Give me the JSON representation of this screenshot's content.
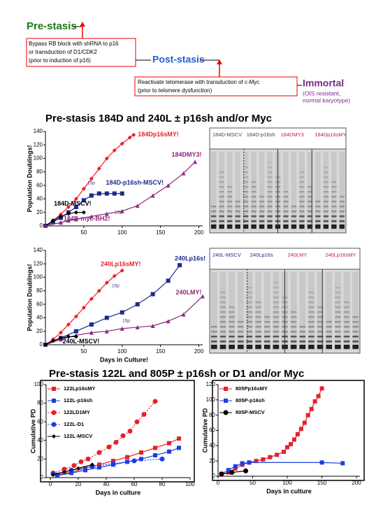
{
  "diagram": {
    "stage1": "Pre-stasis",
    "box1": [
      "Bypass RB block with shRNA to p16",
      "or transduction of D1/CDK2",
      "(prior to induction of p16)"
    ],
    "stage2": "Post-stasis",
    "box2": [
      "Reactivate telomerase with transduction of c-Myc",
      "(prior to telomere dysfunction)"
    ],
    "stage3": "Immortal",
    "stage3_note": [
      "(OIS resistant,",
      "normal karyotype)"
    ]
  },
  "headings": [
    "Pre-stasis 184D and 240L ± p16sh and/or Myc",
    "Pre-stasis 122L and 805P ± p16sh or D1 and/or Myc"
  ],
  "gels": [
    {
      "groups": [
        "184D-MSCV",
        "184D-p16sh",
        "184DMY3",
        "184Dp16sMY"
      ]
    },
    {
      "groups": [
        "240L-MSCV",
        "240Lp16s",
        "240LMY",
        "240Lp16sMY"
      ]
    }
  ],
  "chart_data": [
    {
      "type": "line",
      "ylabel": "Population Doublings!",
      "xlim": [
        0,
        205
      ],
      "ylim": [
        0,
        140
      ],
      "xticks": [
        50,
        100,
        150,
        200
      ],
      "yticks": [
        0,
        20,
        40,
        60,
        80,
        100,
        120,
        140
      ],
      "legend": "direct",
      "annotations": [
        "15p",
        "15p"
      ],
      "series": [
        {
          "name": "184Dp16sMY!",
          "color": "#e8202a",
          "marker": "diamond",
          "x": [
            0,
            10,
            20,
            30,
            40,
            50,
            60,
            70,
            80,
            90,
            100,
            110,
            115
          ],
          "values": [
            0,
            8,
            17,
            28,
            40,
            55,
            70,
            85,
            100,
            112,
            122,
            131,
            135
          ]
        },
        {
          "name": "184DMY3!",
          "color": "#8b2a7e",
          "marker": "triangle",
          "x": [
            0,
            20,
            40,
            60,
            80,
            100,
            120,
            140,
            160,
            180,
            195
          ],
          "values": [
            0,
            5,
            10,
            14,
            18,
            22,
            30,
            45,
            60,
            78,
            95
          ]
        },
        {
          "name": "184D-p16sh-MSCV!",
          "color": "#1f2a8c",
          "marker": "square",
          "x": [
            0,
            10,
            20,
            30,
            40,
            50,
            60,
            70,
            80,
            90,
            100
          ],
          "values": [
            0,
            6,
            12,
            20,
            28,
            38,
            45,
            48,
            48,
            48,
            48
          ]
        },
        {
          "name": "184D-MSCV!",
          "color": "#000000",
          "marker": "diamond",
          "x": [
            0,
            10,
            20,
            30,
            40,
            50
          ],
          "values": [
            0,
            8,
            14,
            18,
            20,
            20
          ]
        },
        {
          "name": "184D-myc-BH2!",
          "color": "#8b2a7e",
          "marker": "triangle",
          "x": [
            0,
            20,
            30,
            40
          ],
          "values": [
            0,
            5,
            8,
            10
          ]
        }
      ]
    },
    {
      "type": "line",
      "ylabel": "Population Doublings!",
      "xlabel": "Days in Culture!",
      "xlim": [
        0,
        205
      ],
      "ylim": [
        0,
        140
      ],
      "xticks": [
        50,
        100,
        150,
        200
      ],
      "yticks": [
        0,
        20,
        40,
        60,
        80,
        100,
        120,
        140
      ],
      "legend": "direct",
      "annotations": [
        "15p",
        "15p"
      ],
      "series": [
        {
          "name": "240Lp16sMY!",
          "color": "#e8202a",
          "marker": "diamond",
          "x": [
            0,
            10,
            20,
            30,
            40,
            50,
            60,
            70,
            80,
            90,
            100
          ],
          "values": [
            0,
            8,
            18,
            30,
            42,
            55,
            68,
            80,
            92,
            102,
            110
          ]
        },
        {
          "name": "240Lp16s!",
          "color": "#1f2a8c",
          "marker": "square",
          "x": [
            0,
            20,
            40,
            60,
            80,
            100,
            120,
            140,
            160,
            175
          ],
          "values": [
            0,
            10,
            20,
            30,
            40,
            48,
            60,
            75,
            95,
            118
          ]
        },
        {
          "name": "240LMY!",
          "color": "#8b2a7e",
          "marker": "triangle",
          "x": [
            0,
            20,
            40,
            60,
            80,
            100,
            120,
            140,
            160,
            180,
            205
          ],
          "values": [
            0,
            8,
            14,
            18,
            20,
            24,
            26,
            28,
            35,
            45,
            72
          ]
        },
        {
          "name": "240L-MSCV!",
          "color": "#000000",
          "marker": "diamond",
          "x": [
            0,
            10,
            20,
            30,
            40
          ],
          "values": [
            0,
            6,
            10,
            12,
            12
          ]
        }
      ]
    },
    {
      "type": "line",
      "ylabel": "Cumulative PD",
      "xlabel": "Days in culture",
      "xlim": [
        -3,
        100
      ],
      "ylim": [
        0,
        100
      ],
      "xticks": [
        0,
        20,
        40,
        60,
        80,
        100
      ],
      "yticks": [
        0,
        20,
        40,
        60,
        80,
        100
      ],
      "legend": "top-left",
      "series": [
        {
          "name": "122Lp16sMY",
          "color": "#e8202a",
          "marker": "square",
          "x": [
            5,
            15,
            25,
            35,
            45,
            55,
            65,
            75,
            85,
            92
          ],
          "values": [
            3,
            6,
            10,
            14,
            18,
            22,
            27,
            32,
            37,
            42
          ]
        },
        {
          "name": "122L-p16sh",
          "color": "#1a3fe0",
          "marker": "square",
          "x": [
            5,
            15,
            25,
            35,
            45,
            55,
            65,
            75,
            85,
            92
          ],
          "values": [
            2,
            5,
            8,
            11,
            14,
            17,
            20,
            24,
            28,
            32
          ]
        },
        {
          "name": "122LD1MY",
          "color": "#e8202a",
          "marker": "circle",
          "dash": true,
          "x": [
            2,
            10,
            17,
            22,
            27,
            35,
            42,
            47,
            52,
            57,
            62,
            67,
            75
          ],
          "values": [
            5,
            9,
            13,
            17,
            20,
            27,
            33,
            38,
            45,
            50,
            60,
            68,
            82
          ]
        },
        {
          "name": "122L-D1",
          "color": "#1a3fe0",
          "marker": "circle",
          "dash": true,
          "x": [
            2,
            15,
            30,
            45,
            60,
            80
          ],
          "values": [
            4,
            8,
            12,
            15,
            18,
            20
          ]
        },
        {
          "name": "122L-MSCV",
          "color": "#000000",
          "marker": "diamond",
          "x": [
            2,
            10,
            20,
            30
          ],
          "values": [
            3,
            6,
            10,
            14
          ]
        }
      ]
    },
    {
      "type": "line",
      "ylabel": "Cumulative PD",
      "xlabel": "Days in culture",
      "xlim": [
        0,
        205
      ],
      "ylim": [
        0,
        120
      ],
      "xticks": [
        0,
        50,
        100,
        150,
        200
      ],
      "yticks": [
        0,
        20,
        40,
        60,
        80,
        100,
        120
      ],
      "legend": "top-left",
      "series": [
        {
          "name": "805Pp16sMY",
          "color": "#e8202a",
          "marker": "square",
          "x": [
            5,
            15,
            25,
            35,
            45,
            55,
            65,
            75,
            85,
            95,
            100,
            105,
            110,
            115,
            120,
            125,
            130,
            135,
            140,
            145,
            150
          ],
          "values": [
            2,
            5,
            10,
            15,
            18,
            20,
            22,
            25,
            28,
            32,
            38,
            42,
            48,
            55,
            62,
            70,
            80,
            88,
            98,
            105,
            115
          ]
        },
        {
          "name": "805P-p16sh",
          "color": "#1a3fe0",
          "marker": "square",
          "x": [
            5,
            15,
            25,
            35,
            45,
            150,
            180
          ],
          "values": [
            3,
            8,
            13,
            17,
            18,
            18,
            17
          ]
        },
        {
          "name": "805P-MSCV",
          "color": "#000000",
          "marker": "circle",
          "x": [
            5,
            20,
            40
          ],
          "values": [
            3,
            5,
            7
          ]
        }
      ]
    }
  ]
}
